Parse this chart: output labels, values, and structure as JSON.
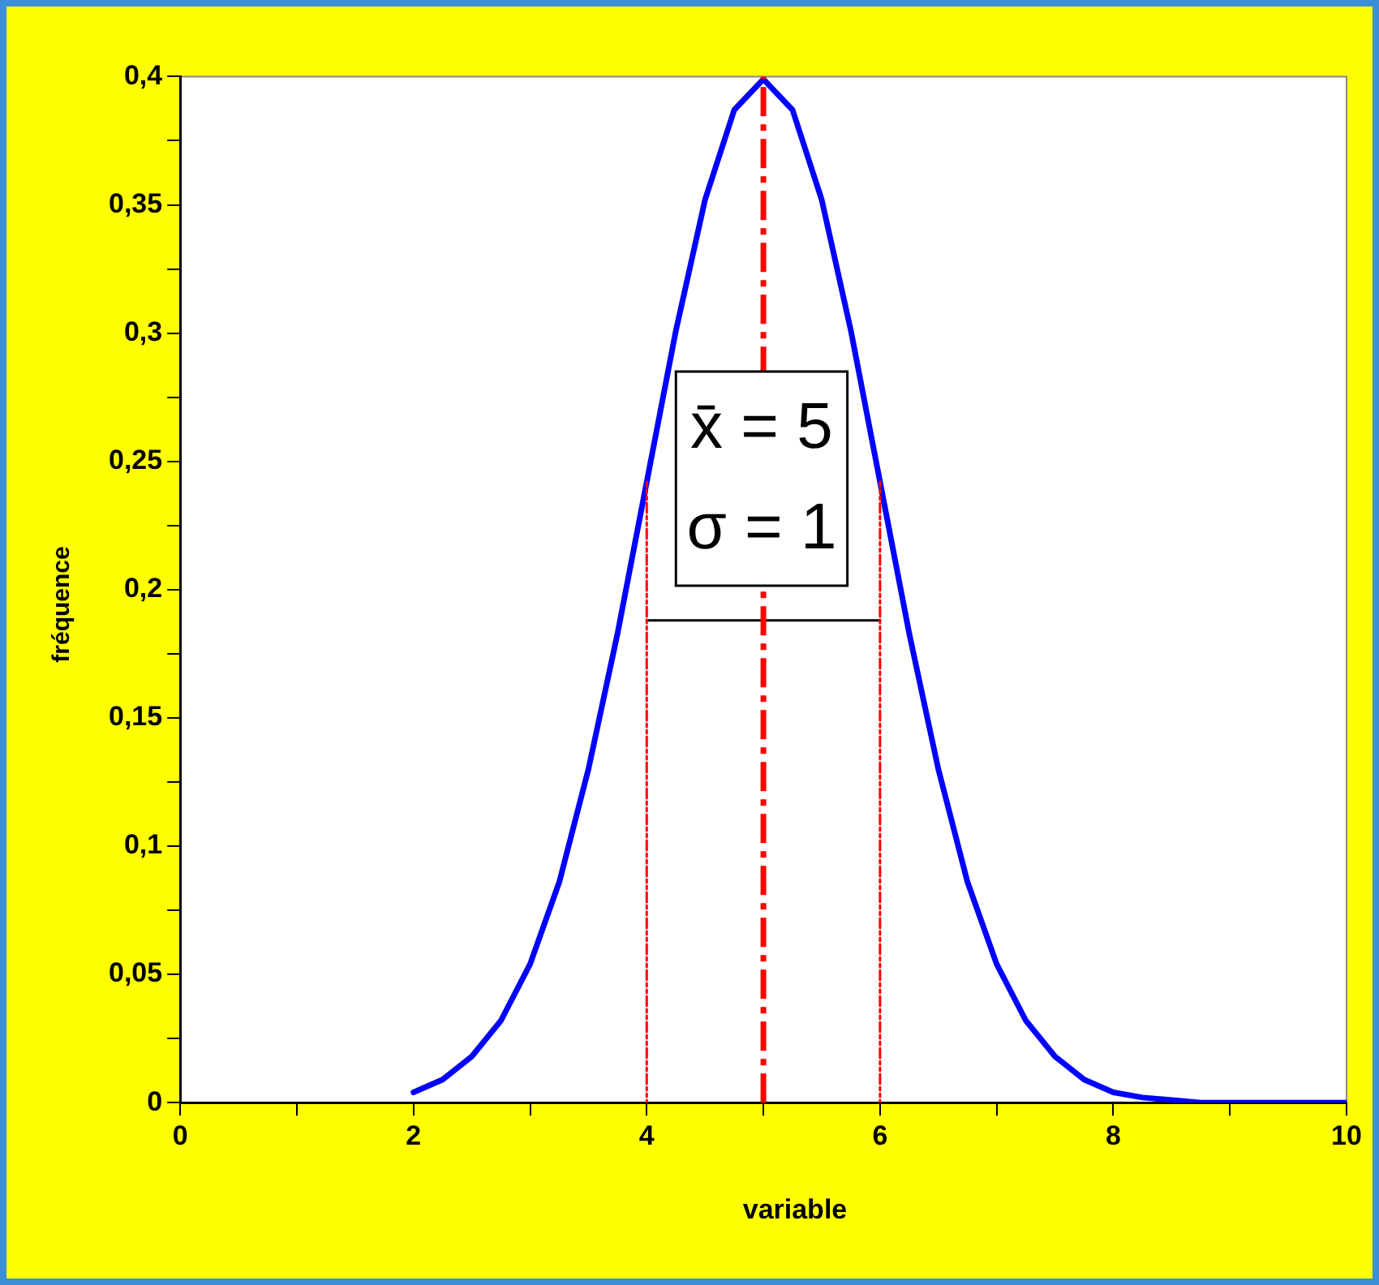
{
  "chart_data": {
    "type": "line",
    "xlabel": "variable",
    "ylabel": "fréquence",
    "xlim": [
      0,
      10
    ],
    "ylim": [
      0,
      0.4
    ],
    "xticks": [
      0,
      {
        "value": 1,
        "label": null
      },
      2,
      {
        "value": 3,
        "label": null
      },
      4,
      {
        "value": 5,
        "label": null
      },
      6,
      {
        "value": 7,
        "label": null
      },
      8,
      {
        "value": 9,
        "label": null
      },
      10
    ],
    "yticks": [
      0,
      {
        "value": 0.025,
        "label": null
      },
      {
        "value": 0.05,
        "label": "0,05"
      },
      {
        "value": 0.075,
        "label": null
      },
      {
        "value": 0.1,
        "label": "0,1"
      },
      {
        "value": 0.125,
        "label": null
      },
      {
        "value": 0.15,
        "label": "0,15"
      },
      {
        "value": 0.175,
        "label": null
      },
      {
        "value": 0.2,
        "label": "0,2"
      },
      {
        "value": 0.225,
        "label": null
      },
      {
        "value": 0.25,
        "label": "0,25"
      },
      {
        "value": 0.275,
        "label": null
      },
      {
        "value": 0.3,
        "label": "0,3"
      },
      {
        "value": 0.325,
        "label": null
      },
      {
        "value": 0.35,
        "label": "0,35"
      },
      {
        "value": 0.375,
        "label": null
      },
      {
        "value": 0.4,
        "label": "0,4"
      }
    ],
    "grid": false,
    "legend": false,
    "marker": "none",
    "series": [
      {
        "color": "#0000ff",
        "line_style": "solid",
        "x": [
          2,
          2.25,
          2.5,
          2.75,
          3,
          3.25,
          3.5,
          3.75,
          4,
          4.25,
          4.5,
          4.75,
          5,
          5.25,
          5.5,
          5.75,
          6,
          6.25,
          6.5,
          6.75,
          7,
          7.25,
          7.5,
          7.75,
          8,
          8.25,
          8.5,
          8.75,
          9,
          9.5,
          10
        ],
        "values": [
          0.004,
          0.009,
          0.018,
          0.032,
          0.054,
          0.086,
          0.13,
          0.183,
          0.242,
          0.301,
          0.352,
          0.387,
          0.399,
          0.387,
          0.352,
          0.301,
          0.242,
          0.183,
          0.13,
          0.086,
          0.054,
          0.032,
          0.018,
          0.009,
          0.004,
          0.002,
          0.001,
          0,
          0,
          0,
          0
        ]
      },
      {
        "color": "#ff0000",
        "line_style": "dotted",
        "x": [
          4,
          4
        ],
        "values": [
          0,
          0.242
        ]
      },
      {
        "color": "#ff0000",
        "line_style": "dotted",
        "x": [
          6,
          6
        ],
        "values": [
          0,
          0.242
        ]
      },
      {
        "color": "#000000",
        "line_style": "solid",
        "x": [
          4,
          6
        ],
        "values": [
          0.188,
          0.188
        ]
      }
    ],
    "ref_lines": [
      {
        "axis": "x",
        "value": 5,
        "color": "#ff0000",
        "line_style": "dashed"
      }
    ],
    "annotations": [
      "x̄ = 5",
      "σ = 1"
    ]
  }
}
